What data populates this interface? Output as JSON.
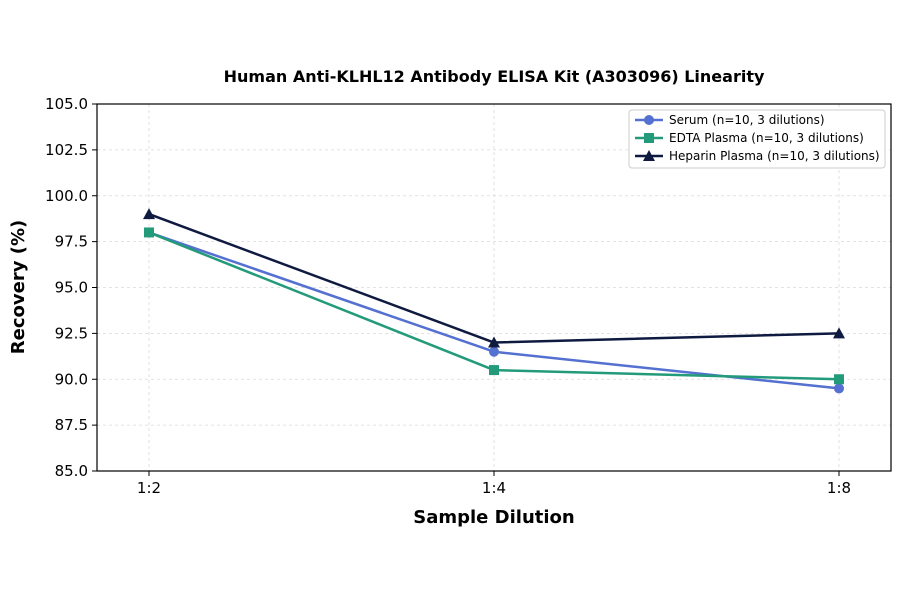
{
  "chart_data": {
    "type": "line",
    "title": "Human Anti-KLHL12 Antibody ELISA Kit (A303096) Linearity",
    "xlabel": "Sample Dilution",
    "ylabel": "Recovery (%)",
    "categories": [
      "1:2",
      "1:4",
      "1:8"
    ],
    "ylim": [
      85.0,
      105.0
    ],
    "yticks": [
      "85.0",
      "87.5",
      "90.0",
      "92.5",
      "95.0",
      "97.5",
      "100.0",
      "102.5",
      "105.0"
    ],
    "grid": true,
    "legend_position": "top-right",
    "series": [
      {
        "name": "Serum (n=10, 3 dilutions)",
        "values": [
          98.0,
          91.5,
          89.5
        ],
        "color": "#5470d0",
        "marker": "circle"
      },
      {
        "name": "EDTA Plasma (n=10, 3 dilutions)",
        "values": [
          98.0,
          90.5,
          90.0
        ],
        "color": "#239b7a",
        "marker": "square"
      },
      {
        "name": "Heparin Plasma (n=10, 3 dilutions)",
        "values": [
          99.0,
          92.0,
          92.5
        ],
        "color": "#0f1a40",
        "marker": "triangle"
      }
    ]
  }
}
